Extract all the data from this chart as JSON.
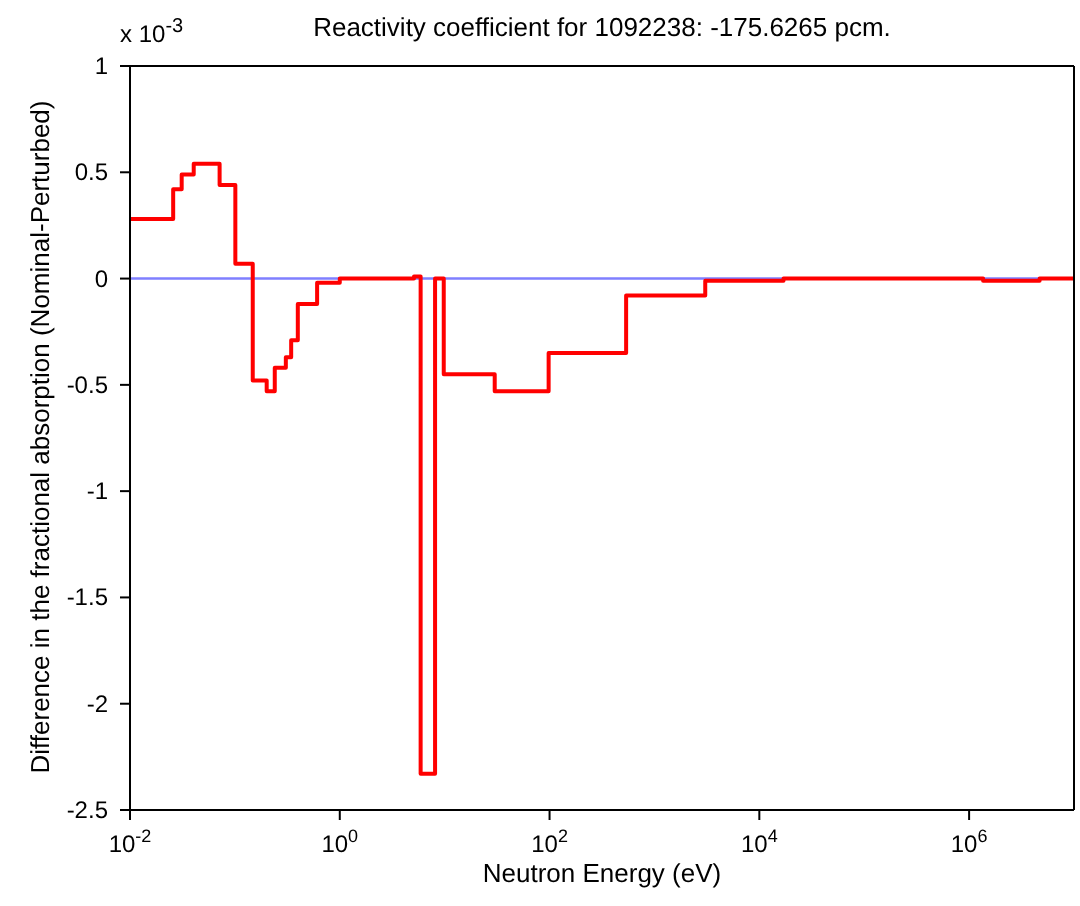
{
  "chart_data": {
    "type": "step",
    "title": "Reactivity coefficient for 1092238: -175.6265 pcm.",
    "xlabel": "Neutron Energy (eV)",
    "ylabel": "Difference in the fractional absorption (Nominal-Perturbed)",
    "annotations": [
      "x 10$^{-3}$"
    ],
    "log": "x",
    "xlim": [
      0.01,
      10000000
    ],
    "xticks": [
      {
        "value": 0.01,
        "label": "10$^{-2}$"
      },
      {
        "value": 1,
        "label": "10$^{0}$"
      },
      {
        "value": 100,
        "label": "10$^{2}$"
      },
      {
        "value": 10000,
        "label": "10$^{4}$"
      },
      {
        "value": 1000000,
        "label": "10$^{6}$"
      }
    ],
    "ylim": [
      -2.5,
      1
    ],
    "yticks": [
      -2.5,
      -2,
      -1.5,
      -1,
      -0.5,
      0,
      0.5,
      1
    ],
    "ref_lines": [
      {
        "axis": "y",
        "value": 0,
        "color": "#7f7fff"
      }
    ],
    "series": [
      {
        "color": "#ff0000",
        "x": [
          0.01,
          0.0258,
          0.0311,
          0.0405,
          0.0715,
          0.101,
          0.148,
          0.201,
          0.24,
          0.306,
          0.344,
          0.398,
          0.608,
          1,
          5.1,
          5.9,
          8.1,
          9.8,
          30,
          98,
          537,
          3050,
          17000,
          1360000,
          4700000,
          10000000
        ],
        "values": [
          0.28,
          0.42,
          0.49,
          0.54,
          0.44,
          0.07,
          -0.48,
          -0.53,
          -0.42,
          -0.37,
          -0.29,
          -0.12,
          -0.02,
          0,
          0.01,
          -2.33,
          0,
          -0.45,
          -0.53,
          -0.35,
          -0.08,
          -0.01,
          0,
          -0.01,
          0,
          0
        ]
      }
    ]
  }
}
